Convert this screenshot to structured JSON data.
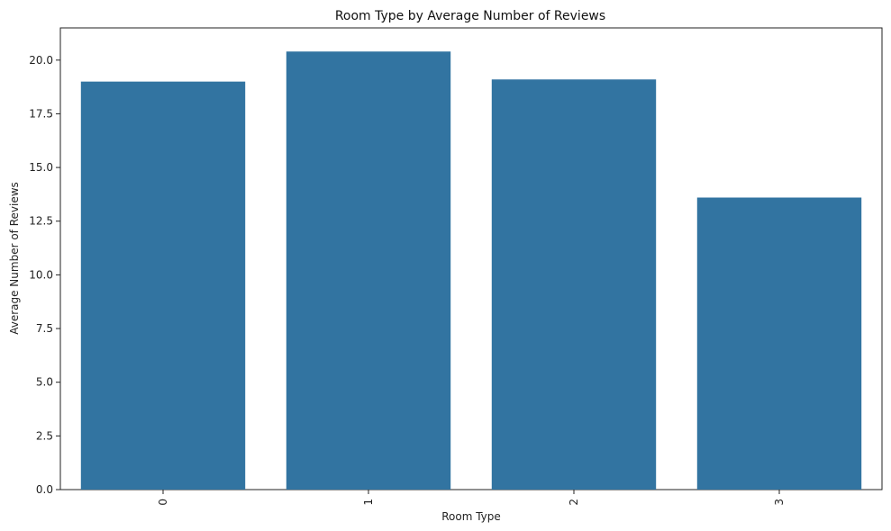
{
  "chart_data": {
    "type": "bar",
    "title": "Room Type by Average Number of Reviews",
    "xlabel": "Room Type",
    "ylabel": "Average Number of Reviews",
    "categories": [
      "0",
      "1",
      "2",
      "3"
    ],
    "values": [
      19.0,
      20.4,
      19.1,
      13.6
    ],
    "ylim": [
      0,
      21.5
    ],
    "yticks": [
      0.0,
      2.5,
      5.0,
      7.5,
      10.0,
      12.5,
      15.0,
      17.5,
      20.0
    ],
    "ytick_labels": [
      "0.0",
      "2.5",
      "5.0",
      "7.5",
      "10.0",
      "12.5",
      "15.0",
      "17.5",
      "20.0"
    ],
    "bar_color": "#3274a1",
    "grid": false,
    "legend": "none"
  }
}
